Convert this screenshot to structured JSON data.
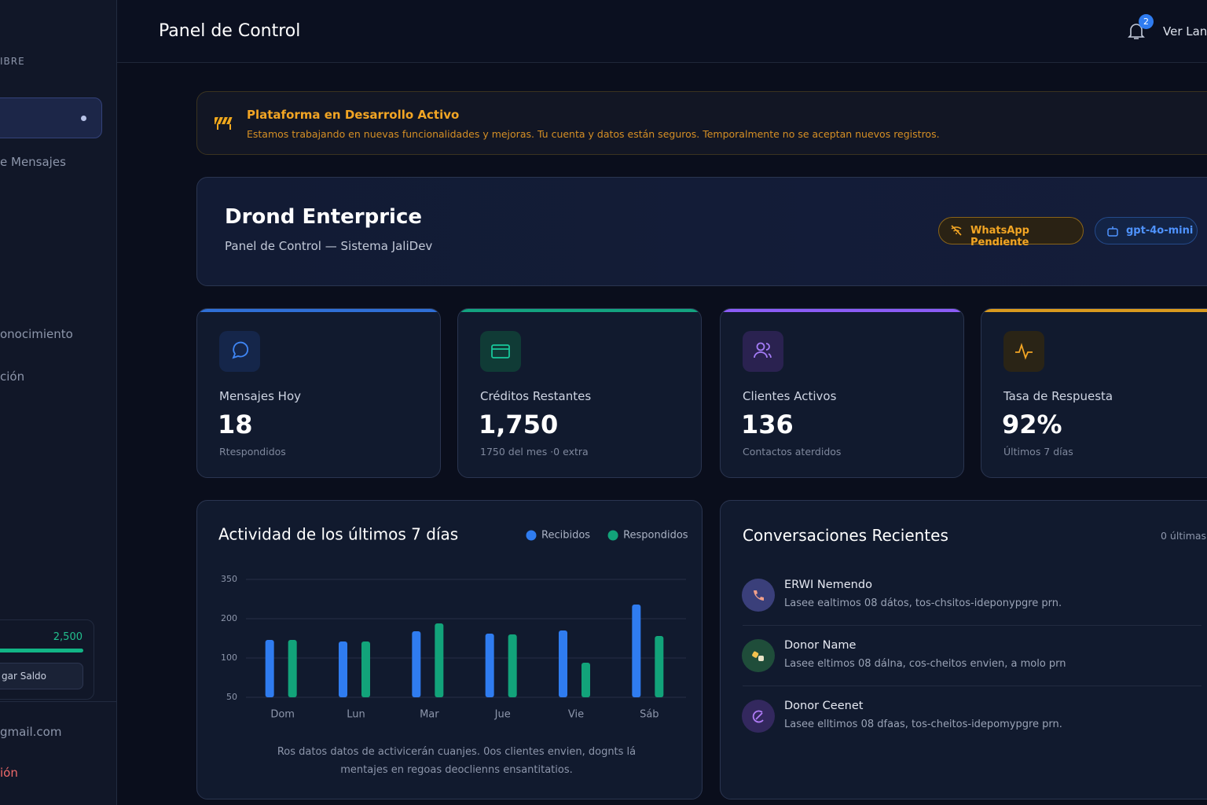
{
  "sidebar": {
    "section": "IBRE",
    "items": [
      "e Mensajes",
      "onocimiento",
      "ción"
    ],
    "balance": "2,500",
    "button": "gar Saldo",
    "email": "gmail.com",
    "logout": "ión"
  },
  "header": {
    "title": "Panel de Control",
    "badge": "2",
    "user": "Ver Lan"
  },
  "banner": {
    "title": "Plataforma en Desarrollo Activo",
    "text": "Estamos trabajando en nuevas funcionalidades y mejoras. Tu cuenta y datos están seguros. Temporalmente no se aceptan nuevos registros."
  },
  "hero": {
    "title": "Drond Enterprice",
    "subtitle": "Panel de Control — Sistema JaliDev",
    "badges": [
      "WhatsApp Pendiente",
      "gpt-4o-mini"
    ]
  },
  "stats": [
    {
      "label": "Mensajes Hoy",
      "value": "18",
      "sub": "Rtespondidos"
    },
    {
      "label": "Créditos Restantes",
      "value": "1,750",
      "sub": "1750 del mes ·0 extra"
    },
    {
      "label": "Clientes Activos",
      "value": "136",
      "sub": "Contactos aterdidos"
    },
    {
      "label": "Tasa de Respuesta",
      "value": "92%",
      "sub": "Últimos 7 días"
    }
  ],
  "chart": {
    "type": "bar",
    "title": "Actividad de los últimos 7 días",
    "categories": [
      "Dom",
      "Lun",
      "Mar",
      "Jue",
      "Vie",
      "Sáb"
    ],
    "series": [
      {
        "name": "Recibidos",
        "color": "#2f7cf0",
        "values": [
          146,
          142,
          168,
          162,
          170,
          254
        ]
      },
      {
        "name": "Respondidos",
        "color": "#12a37a",
        "values": [
          146,
          142,
          188,
          160,
          94,
          156
        ]
      }
    ],
    "ylim": [
      50,
      350
    ],
    "yticks": [
      50,
      100,
      200,
      350
    ],
    "grid": true,
    "caption": "Ros datos datos de activicerán cuanjes. 0os clientes envien, dognts lá mentajes en regoas deoclienns ensantitatios."
  },
  "conversations": {
    "title": "Conversaciones Recientes",
    "meta": "0 últimas",
    "items": [
      {
        "name": "ERWI Nemendo",
        "message": "Lasee ealtimos 08 dátos, tos-chsitos-ideponypgre prn."
      },
      {
        "name": "Donor Name",
        "message": "Lasee eltimos 08 dálna, cos-cheitos envien, a molo prn"
      },
      {
        "name": "Donor Ceenet",
        "message": "Lasee elltimos 08 dfaas, tos-cheitos-idepomypgre prn."
      }
    ]
  }
}
